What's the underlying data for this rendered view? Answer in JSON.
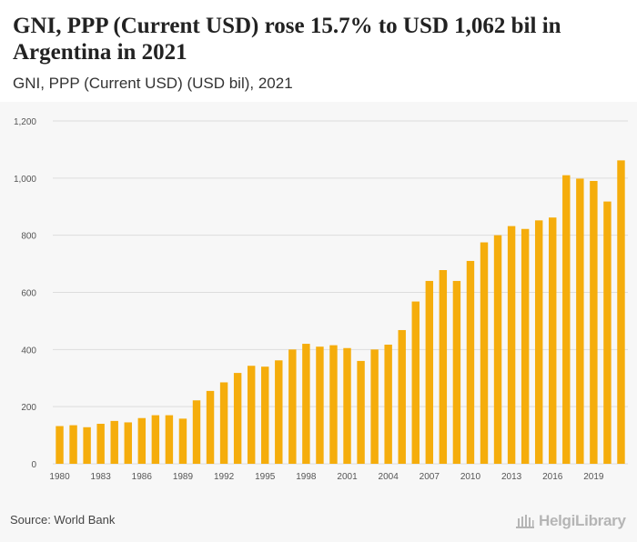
{
  "header": {
    "title": "GNI, PPP (Current USD) rose 15.7% to USD 1,062 bil in Argentina in 2021",
    "subtitle": "GNI, PPP (Current USD) (USD bil), 2021"
  },
  "footer": {
    "source": "Source: World Bank",
    "logo_text": "HelgiLibrary"
  },
  "colors": {
    "bar": "#f5ad0c",
    "grid": "#dddddd",
    "axis_text": "#555555"
  },
  "chart_data": {
    "type": "bar",
    "title": "GNI, PPP (Current USD) rose 15.7% to USD 1,062 bil in Argentina in 2021",
    "subtitle": "GNI, PPP (Current USD) (USD bil), 2021",
    "categories": [
      "1980",
      "1981",
      "1982",
      "1983",
      "1984",
      "1985",
      "1986",
      "1987",
      "1988",
      "1989",
      "1990",
      "1991",
      "1992",
      "1993",
      "1994",
      "1995",
      "1996",
      "1997",
      "1998",
      "1999",
      "2000",
      "2001",
      "2002",
      "2003",
      "2004",
      "2005",
      "2006",
      "2007",
      "2008",
      "2009",
      "2010",
      "2011",
      "2012",
      "2013",
      "2014",
      "2015",
      "2016",
      "2017",
      "2018",
      "2019",
      "2020",
      "2021"
    ],
    "values": [
      132,
      135,
      128,
      140,
      150,
      145,
      160,
      170,
      170,
      158,
      222,
      255,
      285,
      318,
      343,
      340,
      362,
      400,
      420,
      410,
      415,
      405,
      360,
      400,
      417,
      468,
      568,
      640,
      678,
      640,
      710,
      775,
      800,
      832,
      822,
      852,
      862,
      1010,
      998,
      990,
      918,
      1062
    ],
    "x_tick_labels": [
      "1980",
      "1983",
      "1986",
      "1989",
      "1992",
      "1995",
      "1998",
      "2001",
      "2004",
      "2007",
      "2010",
      "2013",
      "2016",
      "2019"
    ],
    "y_ticks": [
      0,
      200,
      400,
      600,
      800,
      1000,
      1200
    ],
    "y_tick_labels": [
      "0",
      "200",
      "400",
      "600",
      "800",
      "1,000",
      "1,200"
    ],
    "ylim": [
      0,
      1200
    ],
    "xlabel": "",
    "ylabel": "",
    "grid": true
  }
}
